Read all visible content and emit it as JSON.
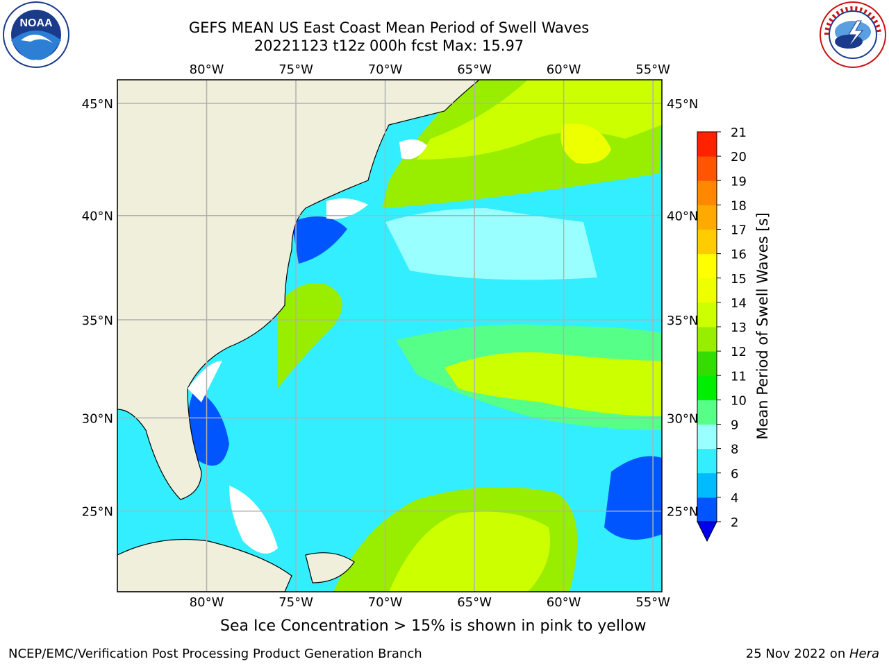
{
  "title": {
    "line1": "GEFS MEAN US East Coast Mean Period of Swell Waves",
    "line2": "20221123 t12z 000h fcst   Max: 15.97"
  },
  "logos": {
    "left": {
      "icon": "noaa-logo",
      "text": "NOAA",
      "ring_text": "NATIONAL OCEANIC AND ATMOSPHERIC ADMINISTRATION · U.S. DEPARTMENT OF COMMERCE"
    },
    "right": {
      "icon": "nws-logo",
      "ring_text": "NATIONAL WEATHER SERVICE"
    }
  },
  "map": {
    "lon_labels": [
      "80°W",
      "75°W",
      "70°W",
      "65°W",
      "60°W",
      "55°W"
    ],
    "lat_labels": [
      "45°N",
      "40°N",
      "35°N",
      "30°N",
      "25°N"
    ],
    "lon_values": [
      -80,
      -75,
      -70,
      -65,
      -60,
      -55
    ],
    "lat_values": [
      45,
      40,
      35,
      30,
      25
    ],
    "extent": {
      "lon": [
        -85,
        -54.5
      ],
      "lat": [
        20.5,
        46
      ]
    }
  },
  "colorbar": {
    "label": "Mean Period of Swell Waves [s]",
    "ticks": [
      "2",
      "4",
      "6",
      "8",
      "9",
      "10",
      "11",
      "12",
      "13",
      "14",
      "15",
      "16",
      "17",
      "18",
      "19",
      "20",
      "21"
    ],
    "colors": [
      "#0055ff",
      "#00bbff",
      "#33eeff",
      "#99ffff",
      "#55ff88",
      "#00ee00",
      "#33dd00",
      "#99ee00",
      "#ccff00",
      "#eeff00",
      "#ffff00",
      "#ffcc00",
      "#ffaa00",
      "#ff8800",
      "#ff5500",
      "#ff2200"
    ],
    "under_color": "#0000ee"
  },
  "subcaption": "Sea Ice Concentration > 15% is shown in pink to yellow",
  "footer": {
    "left": "NCEP/EMC/Verification Post Processing Product Generation Branch",
    "right_date": "25 Nov 2022 on ",
    "right_host": "Hera"
  }
}
